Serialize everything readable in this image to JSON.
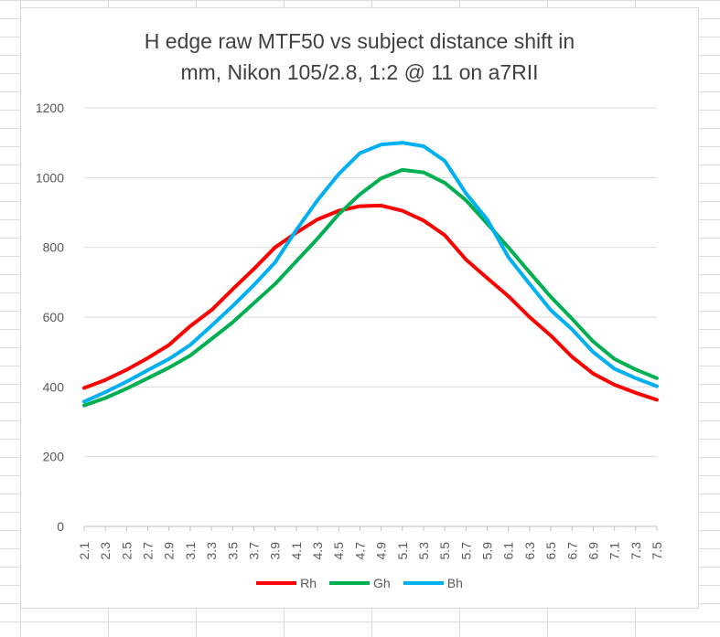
{
  "chart_data": {
    "type": "line",
    "title_lines": [
      "H edge raw MTF50 vs subject distance shift in",
      "mm, Nikon 105/2.8, 1:2 @ 11 on a7RII"
    ],
    "xlabel": "",
    "ylabel": "",
    "x_tick_labels": [
      "2.1",
      "2.3",
      "2.5",
      "2.7",
      "2.9",
      "3.1",
      "3.3",
      "3.5",
      "3.7",
      "3.9",
      "4.1",
      "4.3",
      "4.5",
      "4.7",
      "4.9",
      "5.1",
      "5.3",
      "5.5",
      "5.7",
      "5.9",
      "6.1",
      "6.3",
      "6.5",
      "6.7",
      "6.9",
      "7.1",
      "7.3",
      "7.5"
    ],
    "x": [
      2.1,
      2.3,
      2.5,
      2.7,
      2.9,
      3.1,
      3.3,
      3.5,
      3.7,
      3.9,
      4.1,
      4.3,
      4.5,
      4.7,
      4.9,
      5.1,
      5.3,
      5.5,
      5.7,
      5.9,
      6.1,
      6.3,
      6.5,
      6.7,
      6.9,
      7.1,
      7.3,
      7.5
    ],
    "xlim": [
      2.1,
      7.5
    ],
    "ylim": [
      0,
      1200
    ],
    "y_ticks": [
      "0",
      "200",
      "400",
      "600",
      "800",
      "1000",
      "1200"
    ],
    "grid": "horizontal",
    "legend_position": "bottom",
    "series": [
      {
        "name": "Rh",
        "color": "#ff0000",
        "values": [
          397,
          420,
          449,
          483,
          520,
          574,
          620,
          680,
          738,
          800,
          842,
          880,
          905,
          918,
          920,
          905,
          877,
          835,
          765,
          712,
          660,
          600,
          547,
          486,
          438,
          406,
          383,
          363
        ]
      },
      {
        "name": "Gh",
        "color": "#00b050",
        "values": [
          347,
          368,
          395,
          425,
          455,
          490,
          537,
          585,
          640,
          695,
          760,
          825,
          895,
          952,
          998,
          1022,
          1015,
          985,
          935,
          868,
          800,
          728,
          658,
          595,
          530,
          480,
          450,
          425
        ]
      },
      {
        "name": "Bh",
        "color": "#00b0f0",
        "values": [
          358,
          385,
          415,
          448,
          480,
          520,
          575,
          632,
          692,
          757,
          850,
          935,
          1010,
          1070,
          1095,
          1100,
          1090,
          1048,
          955,
          880,
          772,
          695,
          620,
          565,
          500,
          452,
          425,
          402
        ]
      }
    ]
  }
}
